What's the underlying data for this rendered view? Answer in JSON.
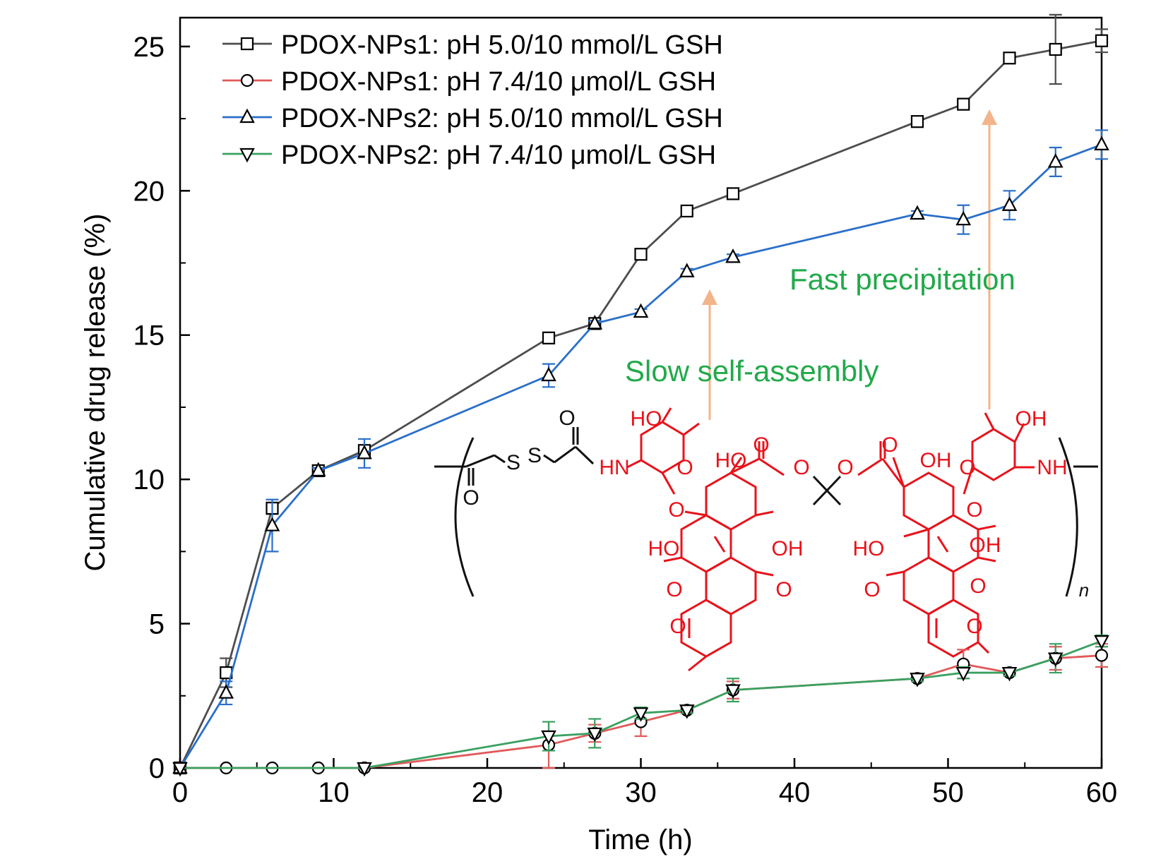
{
  "chart_data": {
    "type": "line",
    "xlabel": "Time (h)",
    "ylabel": "Cumulative drug release (%)",
    "xlim": [
      0,
      60
    ],
    "ylim": [
      0,
      26
    ],
    "x_ticks": [
      0,
      10,
      20,
      30,
      40,
      50,
      60
    ],
    "y_ticks": [
      0,
      5,
      10,
      15,
      20,
      25
    ],
    "x_tick_labels": [
      "0",
      "10",
      "20",
      "30",
      "40",
      "50",
      "60"
    ],
    "y_tick_labels": [
      "0",
      "5",
      "10",
      "15",
      "20",
      "25"
    ],
    "grid": false,
    "legend_position": "top-left",
    "series": [
      {
        "name": "PDOX-NPs1: pH 5.0/10 mmol/L GSH",
        "marker": "square",
        "color": "#4d4d4d",
        "x": [
          0,
          3,
          6,
          9,
          12,
          24,
          27,
          30,
          33,
          36,
          48,
          51,
          54,
          57,
          60
        ],
        "y": [
          0,
          3.3,
          9.0,
          10.3,
          11.0,
          14.9,
          15.4,
          17.8,
          19.3,
          19.9,
          22.4,
          23.0,
          24.6,
          24.9,
          25.2
        ],
        "err": [
          0,
          0.5,
          0.2,
          0.1,
          0.1,
          0.1,
          0.1,
          0.1,
          0.1,
          0.1,
          0.1,
          0.1,
          0.1,
          1.2,
          0.4
        ]
      },
      {
        "name": "PDOX-NPs1: pH 7.4/10 μmol/L GSH",
        "marker": "circle",
        "color": "#e05a5a",
        "x": [
          0,
          3,
          6,
          9,
          12,
          24,
          27,
          30,
          33,
          36,
          48,
          51,
          54,
          57,
          60
        ],
        "y": [
          0,
          0,
          0,
          0,
          0,
          0.8,
          1.2,
          1.6,
          2.0,
          2.7,
          3.1,
          3.6,
          3.3,
          3.8,
          3.9
        ],
        "err": [
          0,
          0,
          0,
          0,
          0,
          0.8,
          0.3,
          0.5,
          0.1,
          0.3,
          0.1,
          0.5,
          0.1,
          0.4,
          0.4
        ]
      },
      {
        "name": "PDOX-NPs2: pH 5.0/10 mmol/L GSH",
        "marker": "triangle-up",
        "color": "#2a6fc9",
        "x": [
          0,
          3,
          6,
          9,
          12,
          24,
          27,
          30,
          33,
          36,
          48,
          51,
          54,
          57,
          60
        ],
        "y": [
          0,
          2.6,
          8.4,
          10.3,
          10.9,
          13.6,
          15.4,
          15.8,
          17.2,
          17.7,
          19.2,
          19.0,
          19.5,
          21.0,
          21.6
        ],
        "err": [
          0,
          0.4,
          0.9,
          0.1,
          0.5,
          0.4,
          0.1,
          0.1,
          0.1,
          0.1,
          0.1,
          0.5,
          0.5,
          0.5,
          0.5
        ]
      },
      {
        "name": "PDOX-NPs2: pH 7.4/10 μmol/L GSH",
        "marker": "triangle-down",
        "color": "#3aa060",
        "x": [
          0,
          12,
          24,
          27,
          30,
          33,
          36,
          48,
          51,
          54,
          57,
          60
        ],
        "y": [
          0,
          0,
          1.1,
          1.2,
          1.9,
          2.0,
          2.7,
          3.1,
          3.3,
          3.3,
          3.8,
          4.4
        ],
        "err": [
          0,
          0,
          0.5,
          0.5,
          0.2,
          0.1,
          0.4,
          0.1,
          0.2,
          0.1,
          0.5,
          0.2
        ]
      }
    ],
    "annotations": [
      {
        "text": "Slow self-assembly",
        "color": "#22a94a"
      },
      {
        "text": "Fast precipitation",
        "color": "#22a94a"
      }
    ],
    "arrow_color": "#f2b48a",
    "structure": {
      "black_color": "#111111",
      "red_color": "#e8131b",
      "labels": {
        "o_upper": "O",
        "o_lower": "O",
        "s1": "S",
        "s2": "S",
        "hn": "HN",
        "nh": "NH",
        "ho_sugar": "HO",
        "oh_sugar": "OH",
        "o_ring_left": "O",
        "o_ring_right": "O",
        "o_link_left": "O",
        "o_link_right": "O",
        "ho_q_left": "HO",
        "oh_q_right": "OH",
        "o_keto_left": "O",
        "o_keto_right": "O",
        "o_ether_left": "O",
        "o_ether_right": "O",
        "ho_arom_left_l": "HO",
        "oh_arom_left_r": "OH",
        "ho_arom_right_l": "HO",
        "oh_arom_right_r": "OH",
        "o_quin_1": "O",
        "o_quin_2": "O",
        "o_quin_3": "O",
        "o_quin_4": "O",
        "ome_left": "O",
        "ome_right": "O",
        "n": "n"
      }
    }
  }
}
